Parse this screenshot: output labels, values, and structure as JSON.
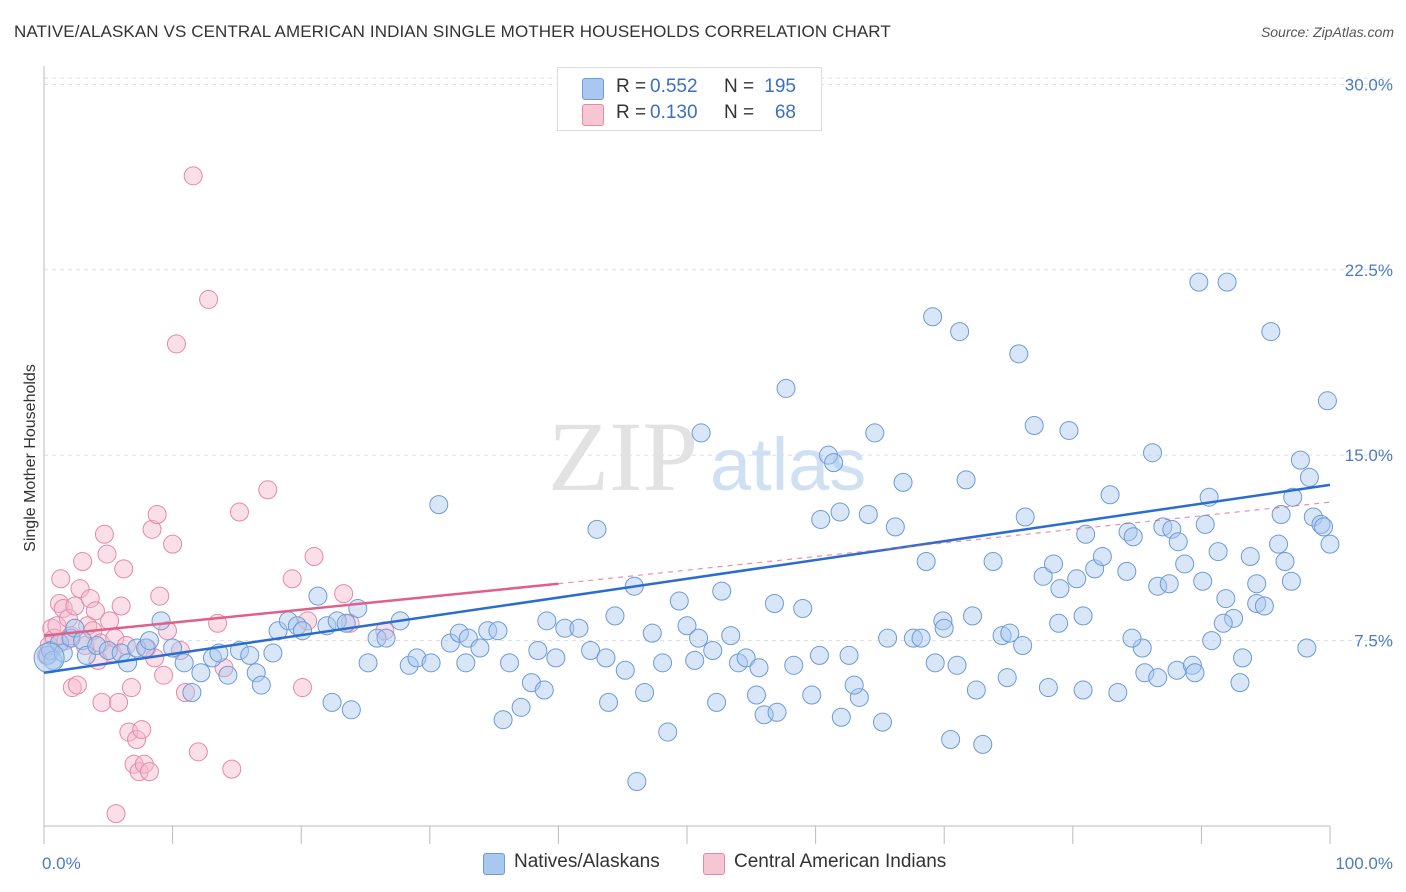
{
  "header": {
    "title": "NATIVE/ALASKAN VS CENTRAL AMERICAN INDIAN SINGLE MOTHER HOUSEHOLDS CORRELATION CHART",
    "source": "Source: ZipAtlas.com"
  },
  "legend": {
    "rows": [
      {
        "r_label": "R =",
        "r_value": "0.552",
        "n_label": "N =",
        "n_value": "195"
      },
      {
        "r_label": "R =",
        "r_value": "0.130",
        "n_label": "N =",
        "n_value": "68"
      }
    ]
  },
  "watermark": {
    "zip": "ZIP",
    "atlas": "atlas"
  },
  "colors": {
    "blue_fill": "#a8c8f0",
    "blue_stroke": "#6c9bd6",
    "blue_line": "#2a6ccf",
    "pink_fill": "#f6b9cb",
    "pink_stroke": "#e38aa6",
    "pink_line": "#e0608a",
    "tick_text": "#4a7cc4",
    "grid": "#dddddd"
  },
  "chart_data": {
    "type": "scatter",
    "title": "NATIVE/ALASKAN VS CENTRAL AMERICAN INDIAN SINGLE MOTHER HOUSEHOLDS CORRELATION CHART",
    "xlabel": "",
    "ylabel": "Single Mother Households",
    "xlim": [
      0,
      100
    ],
    "ylim": [
      0,
      30.5
    ],
    "y_ticks": [
      7.5,
      15.0,
      22.5,
      30.0
    ],
    "y_tick_labels": [
      "7.5%",
      "15.0%",
      "22.5%",
      "30.0%"
    ],
    "x_tick_labels": [
      "0.0%",
      "100.0%"
    ],
    "grid": true,
    "legend_position": "top-center",
    "series": [
      {
        "name": "Natives/Alaskans",
        "color": "#a8c8f0",
        "trend": {
          "x0": 0,
          "y0": 6.2,
          "x1": 100,
          "y1": 13.8
        },
        "points": [
          [
            0.3,
            6.9
          ],
          [
            0.5,
            7.1
          ],
          [
            0.7,
            6.7
          ],
          [
            1.2,
            7.4
          ],
          [
            1.5,
            7.0
          ],
          [
            2.1,
            7.6
          ],
          [
            2.4,
            8.0
          ],
          [
            3.0,
            7.5
          ],
          [
            3.3,
            6.9
          ],
          [
            4.1,
            7.3
          ],
          [
            5.0,
            7.1
          ],
          [
            6.0,
            7.0
          ],
          [
            6.5,
            6.6
          ],
          [
            7.2,
            7.2
          ],
          [
            7.9,
            7.2
          ],
          [
            8.2,
            7.5
          ],
          [
            9.1,
            8.3
          ],
          [
            10.0,
            7.2
          ],
          [
            10.9,
            6.6
          ],
          [
            11.5,
            5.4
          ],
          [
            12.2,
            6.2
          ],
          [
            13.1,
            6.8
          ],
          [
            13.6,
            7.0
          ],
          [
            14.3,
            6.1
          ],
          [
            15.2,
            7.1
          ],
          [
            16.0,
            6.9
          ],
          [
            16.5,
            6.2
          ],
          [
            17.8,
            7.0
          ],
          [
            18.2,
            7.9
          ],
          [
            19.0,
            8.3
          ],
          [
            19.7,
            8.1
          ],
          [
            20.1,
            7.9
          ],
          [
            21.3,
            9.3
          ],
          [
            22.0,
            8.1
          ],
          [
            22.8,
            8.3
          ],
          [
            23.5,
            8.2
          ],
          [
            24.4,
            8.8
          ],
          [
            25.2,
            6.6
          ],
          [
            25.9,
            7.6
          ],
          [
            26.6,
            7.6
          ],
          [
            27.7,
            8.3
          ],
          [
            28.4,
            6.5
          ],
          [
            29.0,
            6.8
          ],
          [
            30.1,
            6.6
          ],
          [
            30.7,
            13.0
          ],
          [
            31.6,
            7.4
          ],
          [
            32.3,
            7.8
          ],
          [
            33.0,
            7.6
          ],
          [
            33.9,
            7.2
          ],
          [
            34.5,
            7.9
          ],
          [
            35.3,
            7.9
          ],
          [
            36.2,
            6.6
          ],
          [
            37.1,
            4.8
          ],
          [
            37.9,
            5.8
          ],
          [
            38.4,
            7.1
          ],
          [
            39.1,
            8.3
          ],
          [
            39.8,
            6.8
          ],
          [
            40.5,
            8.0
          ],
          [
            41.6,
            8.0
          ],
          [
            42.5,
            7.1
          ],
          [
            43.0,
            12.0
          ],
          [
            43.7,
            6.8
          ],
          [
            44.4,
            8.5
          ],
          [
            45.2,
            6.3
          ],
          [
            45.9,
            9.7
          ],
          [
            46.7,
            5.4
          ],
          [
            47.3,
            7.8
          ],
          [
            48.1,
            6.6
          ],
          [
            48.5,
            3.8
          ],
          [
            49.4,
            9.1
          ],
          [
            50.0,
            8.1
          ],
          [
            50.6,
            6.7
          ],
          [
            51.1,
            15.9
          ],
          [
            52.3,
            5.0
          ],
          [
            52.7,
            9.5
          ],
          [
            53.4,
            7.7
          ],
          [
            54.0,
            6.6
          ],
          [
            54.6,
            6.8
          ],
          [
            55.4,
            5.3
          ],
          [
            56.0,
            4.5
          ],
          [
            56.8,
            9.0
          ],
          [
            57.7,
            17.7
          ],
          [
            58.3,
            6.5
          ],
          [
            59.0,
            8.8
          ],
          [
            59.7,
            5.3
          ],
          [
            60.4,
            12.4
          ],
          [
            61.0,
            15.0
          ],
          [
            61.4,
            14.7
          ],
          [
            62.0,
            4.4
          ],
          [
            62.6,
            6.9
          ],
          [
            63.4,
            5.2
          ],
          [
            64.1,
            12.6
          ],
          [
            64.6,
            15.9
          ],
          [
            65.6,
            7.6
          ],
          [
            66.2,
            12.1
          ],
          [
            66.8,
            13.9
          ],
          [
            67.6,
            7.6
          ],
          [
            68.6,
            10.7
          ],
          [
            69.1,
            20.6
          ],
          [
            69.9,
            8.3
          ],
          [
            70.5,
            3.5
          ],
          [
            71.2,
            20.0
          ],
          [
            71.7,
            14.0
          ],
          [
            72.2,
            8.5
          ],
          [
            73.0,
            3.3
          ],
          [
            73.8,
            10.7
          ],
          [
            74.5,
            7.7
          ],
          [
            75.1,
            7.8
          ],
          [
            75.8,
            19.1
          ],
          [
            76.3,
            12.5
          ],
          [
            77.0,
            16.2
          ],
          [
            77.7,
            10.1
          ],
          [
            78.5,
            10.6
          ],
          [
            78.9,
            8.2
          ],
          [
            79.7,
            16.0
          ],
          [
            80.3,
            10.0
          ],
          [
            80.8,
            8.5
          ],
          [
            81.7,
            10.4
          ],
          [
            82.3,
            10.9
          ],
          [
            82.9,
            13.4
          ],
          [
            83.5,
            5.4
          ],
          [
            84.3,
            11.9
          ],
          [
            84.7,
            11.7
          ],
          [
            85.4,
            7.2
          ],
          [
            86.2,
            15.1
          ],
          [
            86.6,
            9.7
          ],
          [
            87.0,
            12.1
          ],
          [
            87.5,
            9.8
          ],
          [
            88.1,
            6.3
          ],
          [
            88.7,
            10.6
          ],
          [
            89.3,
            6.5
          ],
          [
            89.8,
            22.0
          ],
          [
            90.3,
            12.2
          ],
          [
            90.8,
            7.5
          ],
          [
            91.3,
            11.1
          ],
          [
            92.0,
            22.0
          ],
          [
            92.5,
            8.4
          ],
          [
            93.2,
            6.8
          ],
          [
            93.8,
            10.9
          ],
          [
            94.3,
            9.0
          ],
          [
            94.9,
            8.9
          ],
          [
            95.4,
            20.0
          ],
          [
            96.0,
            11.4
          ],
          [
            96.5,
            10.7
          ],
          [
            97.0,
            9.9
          ],
          [
            97.7,
            14.8
          ],
          [
            98.2,
            7.2
          ],
          [
            98.7,
            12.5
          ],
          [
            99.3,
            12.2
          ],
          [
            99.8,
            17.2
          ],
          [
            16.9,
            5.7
          ],
          [
            22.4,
            5.0
          ],
          [
            23.9,
            4.7
          ],
          [
            32.8,
            6.6
          ],
          [
            35.7,
            4.3
          ],
          [
            38.9,
            5.5
          ],
          [
            43.9,
            5.0
          ],
          [
            46.1,
            1.8
          ],
          [
            50.9,
            7.6
          ],
          [
            52.0,
            7.1
          ],
          [
            55.6,
            6.4
          ],
          [
            57.0,
            4.6
          ],
          [
            60.3,
            6.9
          ],
          [
            63.0,
            5.7
          ],
          [
            65.2,
            4.2
          ],
          [
            68.2,
            7.6
          ],
          [
            71.0,
            6.5
          ],
          [
            72.5,
            5.5
          ],
          [
            76.1,
            7.3
          ],
          [
            78.1,
            5.6
          ],
          [
            80.8,
            5.5
          ],
          [
            84.6,
            7.6
          ],
          [
            85.6,
            6.2
          ],
          [
            87.7,
            12.0
          ],
          [
            89.5,
            6.2
          ],
          [
            90.6,
            13.3
          ],
          [
            91.7,
            8.2
          ],
          [
            93.0,
            5.8
          ],
          [
            94.3,
            9.8
          ],
          [
            96.2,
            12.6
          ],
          [
            97.1,
            13.3
          ],
          [
            98.4,
            14.1
          ],
          [
            99.5,
            12.1
          ],
          [
            61.9,
            12.7
          ],
          [
            74.9,
            6.0
          ],
          [
            79.0,
            9.6
          ],
          [
            84.2,
            10.3
          ],
          [
            88.2,
            11.5
          ],
          [
            90.1,
            9.9
          ],
          [
            91.9,
            9.2
          ],
          [
            86.6,
            6.0
          ],
          [
            81.0,
            11.8
          ],
          [
            69.3,
            6.6
          ],
          [
            70.0,
            8.0
          ],
          [
            100.0,
            11.4
          ]
        ]
      },
      {
        "name": "Central American Indians",
        "color": "#f6b9cb",
        "trend": {
          "x0": 0,
          "y0": 7.7,
          "x1": 40,
          "y1": 9.8
        },
        "trend_dashed": {
          "x0": 40,
          "y0": 9.8,
          "x1": 100,
          "y1": 13.1
        },
        "points": [
          [
            0.2,
            6.9
          ],
          [
            0.4,
            7.3
          ],
          [
            0.6,
            8.0
          ],
          [
            0.8,
            7.6
          ],
          [
            1.0,
            8.1
          ],
          [
            1.2,
            9.0
          ],
          [
            1.3,
            10.0
          ],
          [
            1.5,
            8.8
          ],
          [
            1.7,
            7.5
          ],
          [
            1.9,
            8.4
          ],
          [
            2.1,
            7.7
          ],
          [
            2.2,
            5.6
          ],
          [
            2.4,
            8.9
          ],
          [
            2.6,
            5.7
          ],
          [
            2.8,
            9.6
          ],
          [
            3.0,
            10.7
          ],
          [
            3.2,
            7.3
          ],
          [
            3.4,
            8.1
          ],
          [
            3.6,
            9.2
          ],
          [
            3.8,
            7.9
          ],
          [
            4.0,
            8.7
          ],
          [
            4.2,
            6.7
          ],
          [
            4.4,
            7.4
          ],
          [
            4.5,
            5.0
          ],
          [
            4.7,
            11.8
          ],
          [
            4.9,
            11.0
          ],
          [
            5.1,
            8.3
          ],
          [
            5.3,
            7.0
          ],
          [
            5.5,
            7.6
          ],
          [
            5.6,
            0.5
          ],
          [
            5.8,
            5.0
          ],
          [
            6.0,
            8.9
          ],
          [
            6.2,
            10.4
          ],
          [
            6.4,
            7.3
          ],
          [
            6.6,
            3.8
          ],
          [
            6.8,
            5.6
          ],
          [
            7.0,
            2.5
          ],
          [
            7.2,
            3.5
          ],
          [
            7.4,
            2.2
          ],
          [
            7.6,
            3.9
          ],
          [
            7.8,
            2.5
          ],
          [
            8.0,
            7.2
          ],
          [
            8.2,
            2.2
          ],
          [
            8.4,
            12.0
          ],
          [
            8.6,
            6.8
          ],
          [
            8.8,
            12.6
          ],
          [
            9.0,
            9.3
          ],
          [
            9.3,
            6.1
          ],
          [
            9.6,
            7.9
          ],
          [
            10.0,
            11.4
          ],
          [
            10.3,
            19.5
          ],
          [
            10.6,
            7.1
          ],
          [
            11.0,
            5.4
          ],
          [
            11.6,
            26.3
          ],
          [
            12.0,
            3.0
          ],
          [
            12.8,
            21.3
          ],
          [
            13.5,
            8.2
          ],
          [
            14.0,
            6.4
          ],
          [
            14.6,
            2.3
          ],
          [
            15.2,
            12.7
          ],
          [
            17.4,
            13.6
          ],
          [
            19.3,
            10.0
          ],
          [
            20.1,
            5.6
          ],
          [
            20.5,
            8.3
          ],
          [
            21.0,
            10.9
          ],
          [
            23.3,
            9.4
          ],
          [
            23.8,
            8.2
          ],
          [
            26.5,
            7.9
          ]
        ]
      }
    ]
  },
  "bottom_legend": {
    "items": [
      {
        "label": "Natives/Alaskans"
      },
      {
        "label": "Central American Indians"
      }
    ]
  }
}
